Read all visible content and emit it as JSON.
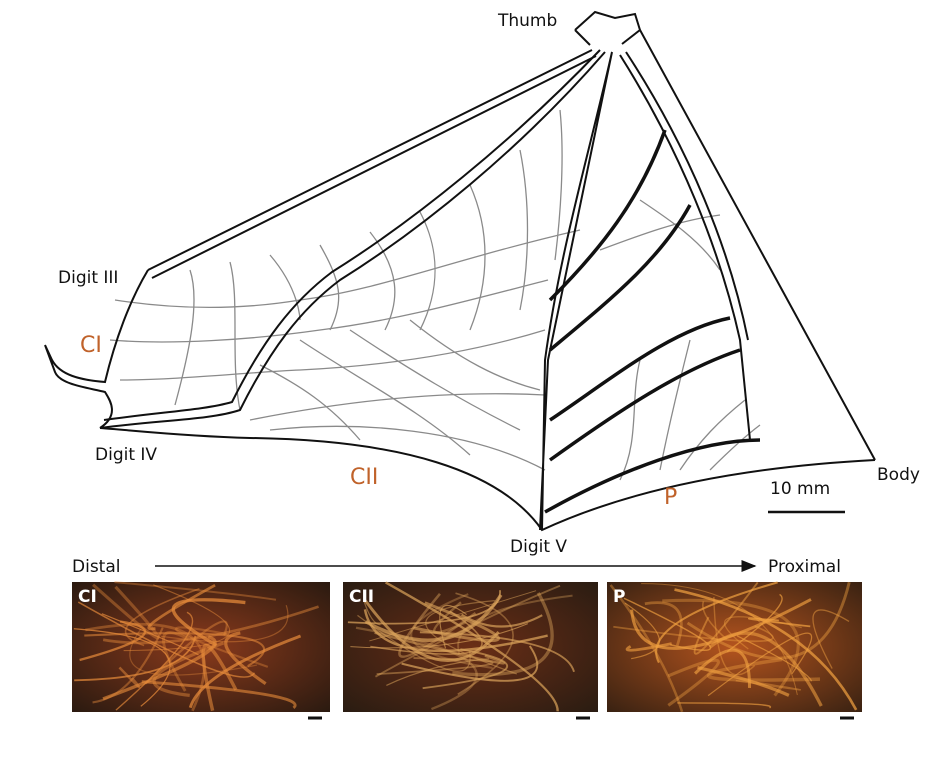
{
  "diagram": {
    "labels": {
      "thumb": "Thumb",
      "digit_iii": "Digit III",
      "digit_iv": "Digit IV",
      "digit_v": "Digit V",
      "body": "Body"
    },
    "regions": {
      "ci": "CI",
      "cii": "CII",
      "p": "P"
    },
    "scale_bar": "10 mm",
    "axis": {
      "start": "Distal",
      "end": "Proximal"
    },
    "panels": [
      "CI",
      "CII",
      "P"
    ]
  }
}
